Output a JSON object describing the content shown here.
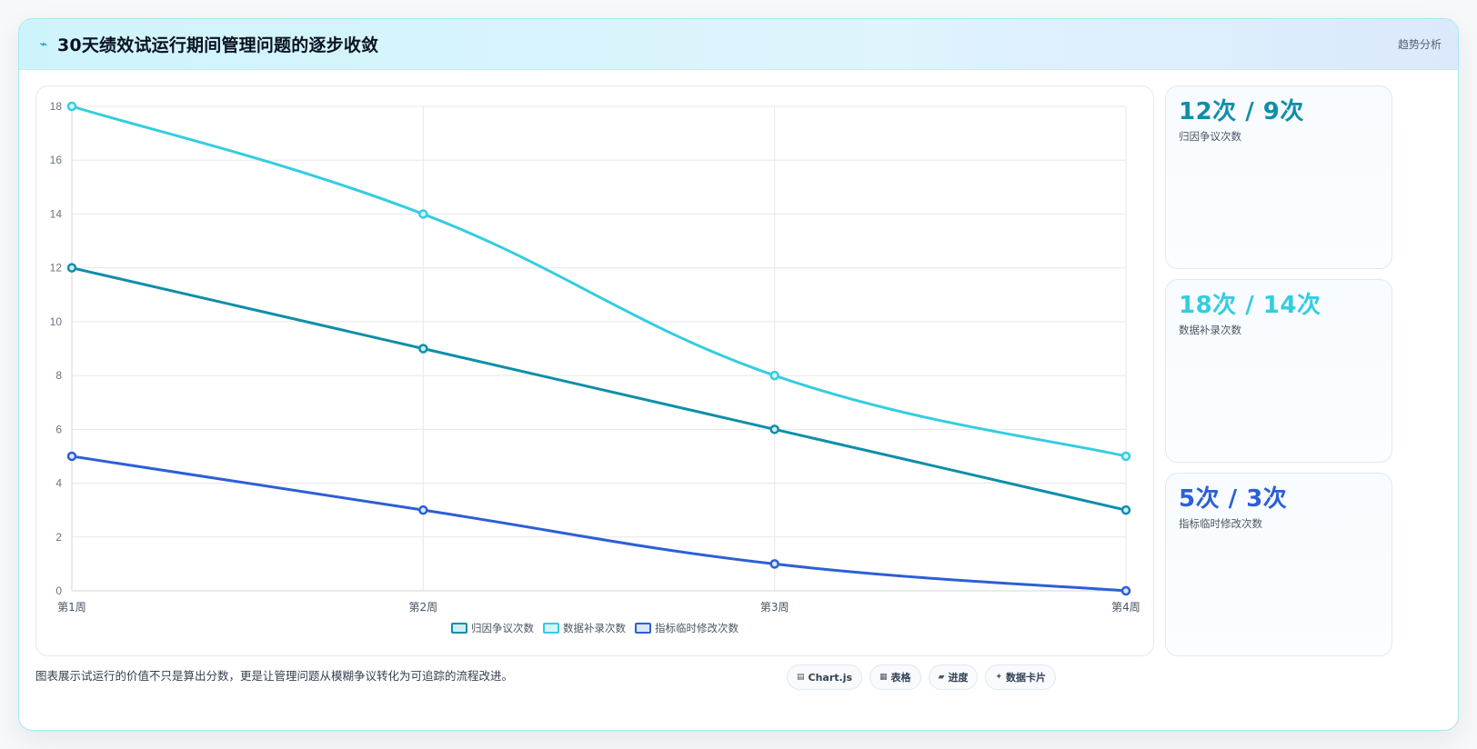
{
  "header": {
    "title": "30天绩效试运行期间管理问题的逐步收敛",
    "tag": "趋势分析"
  },
  "chart_data": {
    "type": "line",
    "categories": [
      "第1周",
      "第2周",
      "第3周",
      "第4周"
    ],
    "ylim": [
      0,
      18
    ],
    "yticks": [
      0,
      2,
      4,
      6,
      8,
      10,
      12,
      14,
      16,
      18
    ],
    "grid": true,
    "legend_position": "bottom",
    "series": [
      {
        "name": "归因争议次数",
        "values": [
          12,
          9,
          6,
          3
        ],
        "color": "#0e8fa8",
        "fill": "#cdeef4"
      },
      {
        "name": "数据补录次数",
        "values": [
          18,
          14,
          8,
          5
        ],
        "color": "#33cde0",
        "fill": "#d6f5f9"
      },
      {
        "name": "指标临时修改次数",
        "values": [
          5,
          3,
          1,
          0
        ],
        "color": "#2c5fd6",
        "fill": "#dbe6fb"
      }
    ]
  },
  "stats": [
    {
      "value": "12次 / 9次",
      "label": "归因争议次数",
      "color": "#0e8fa8"
    },
    {
      "value": "18次 / 14次",
      "label": "数据补录次数",
      "color": "#33cde0"
    },
    {
      "value": "5次 / 3次",
      "label": "指标临时修改次数",
      "color": "#2c5fd6"
    }
  ],
  "footer": {
    "note": "图表展示试运行的价值不只是算出分数，更是让管理问题从模糊争议转化为可追踪的流程改进。"
  },
  "pills": [
    {
      "icon": "▤",
      "label": "Chart.js",
      "icon_name": "chart-icon"
    },
    {
      "icon": "▦",
      "label": "表格",
      "icon_name": "table-icon"
    },
    {
      "icon": "▰",
      "label": "进度",
      "icon_name": "progress-icon"
    },
    {
      "icon": "✦",
      "label": "数据卡片",
      "icon_name": "card-icon"
    }
  ]
}
